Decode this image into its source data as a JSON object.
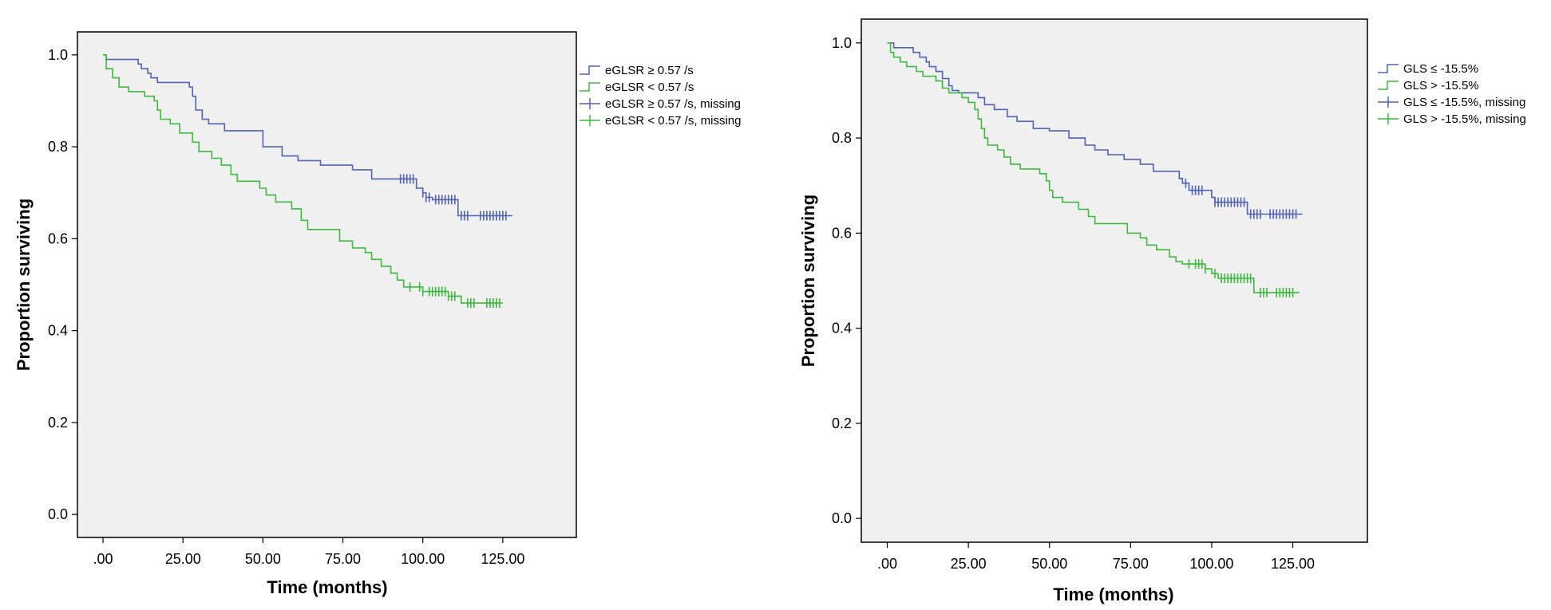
{
  "chart_data": [
    {
      "type": "line",
      "subtype": "kaplan-meier",
      "title": "",
      "xlabel": "Time (months)",
      "ylabel": "Proportion surviving",
      "xlim": [
        -8,
        148
      ],
      "ylim": [
        -0.05,
        1.05
      ],
      "xticks": [
        0,
        25,
        50,
        75,
        100,
        125
      ],
      "xtick_labels": [
        ".00",
        "25.00",
        "50.00",
        "75.00",
        "100.00",
        "125.00"
      ],
      "yticks": [
        0.0,
        0.2,
        0.4,
        0.6,
        0.8,
        1.0
      ],
      "ytick_labels": [
        "0.0",
        "0.2",
        "0.4",
        "0.6",
        "0.8",
        "1.0"
      ],
      "grid": false,
      "legend_position": "right",
      "colors": {
        "group1": "#4f63b0",
        "group2": "#3fb83f",
        "background": "#f0f0f0"
      },
      "legend": [
        "eGLSR ≥ 0.57 /s",
        "eGLSR < 0.57 /s",
        "eGLSR ≥ 0.57 /s, missing",
        "eGLSR < 0.57 /s, missing"
      ],
      "series": [
        {
          "name": "eGLSR ≥ 0.57 /s",
          "color": "#4f63b0",
          "steps": [
            [
              0,
              1.0
            ],
            [
              1,
              0.99
            ],
            [
              11,
              0.98
            ],
            [
              12,
              0.97
            ],
            [
              14,
              0.96
            ],
            [
              15,
              0.95
            ],
            [
              17,
              0.94
            ],
            [
              27,
              0.93
            ],
            [
              28,
              0.91
            ],
            [
              29,
              0.88
            ],
            [
              31,
              0.86
            ],
            [
              33,
              0.85
            ],
            [
              38,
              0.835
            ],
            [
              50,
              0.8
            ],
            [
              56,
              0.78
            ],
            [
              61,
              0.77
            ],
            [
              68,
              0.76
            ],
            [
              78,
              0.75
            ],
            [
              84,
              0.73
            ],
            [
              98,
              0.71
            ],
            [
              100,
              0.7
            ],
            [
              101,
              0.69
            ],
            [
              103,
              0.685
            ],
            [
              111,
              0.65
            ],
            [
              128,
              0.65
            ]
          ],
          "censored": [
            93,
            94,
            95,
            96,
            97,
            100,
            101,
            102,
            104,
            105,
            106,
            107,
            108,
            109,
            110,
            112,
            113,
            114,
            118,
            119,
            120,
            121,
            122,
            123,
            124,
            125,
            126
          ]
        },
        {
          "name": "eGLSR < 0.57 /s",
          "color": "#3fb83f",
          "steps": [
            [
              0,
              1.0
            ],
            [
              1,
              0.97
            ],
            [
              3,
              0.95
            ],
            [
              5,
              0.93
            ],
            [
              8,
              0.92
            ],
            [
              13,
              0.91
            ],
            [
              16,
              0.9
            ],
            [
              17,
              0.88
            ],
            [
              18,
              0.86
            ],
            [
              21,
              0.85
            ],
            [
              24,
              0.83
            ],
            [
              28,
              0.81
            ],
            [
              30,
              0.79
            ],
            [
              34,
              0.775
            ],
            [
              37,
              0.76
            ],
            [
              40,
              0.74
            ],
            [
              42,
              0.725
            ],
            [
              49,
              0.71
            ],
            [
              51,
              0.695
            ],
            [
              54,
              0.68
            ],
            [
              59,
              0.665
            ],
            [
              62,
              0.64
            ],
            [
              64,
              0.62
            ],
            [
              74,
              0.595
            ],
            [
              78,
              0.58
            ],
            [
              82,
              0.57
            ],
            [
              84,
              0.555
            ],
            [
              87,
              0.54
            ],
            [
              90,
              0.525
            ],
            [
              92,
              0.51
            ],
            [
              94,
              0.495
            ],
            [
              100,
              0.485
            ],
            [
              108,
              0.475
            ],
            [
              112,
              0.46
            ],
            [
              125,
              0.46
            ]
          ],
          "censored": [
            96,
            99,
            100,
            102,
            103,
            104,
            105,
            106,
            107,
            108,
            109,
            110,
            114,
            115,
            116,
            120,
            121,
            122,
            123,
            124
          ]
        }
      ]
    },
    {
      "type": "line",
      "subtype": "kaplan-meier",
      "title": "",
      "xlabel": "Time (months)",
      "ylabel": "Proportion surviving",
      "xlim": [
        -8,
        148
      ],
      "ylim": [
        -0.05,
        1.05
      ],
      "xticks": [
        0,
        25,
        50,
        75,
        100,
        125
      ],
      "xtick_labels": [
        ".00",
        "25.00",
        "50.00",
        "75.00",
        "100.00",
        "125.00"
      ],
      "yticks": [
        0.0,
        0.2,
        0.4,
        0.6,
        0.8,
        1.0
      ],
      "ytick_labels": [
        "0.0",
        "0.2",
        "0.4",
        "0.6",
        "0.8",
        "1.0"
      ],
      "grid": false,
      "legend_position": "right",
      "colors": {
        "group1": "#4f63b0",
        "group2": "#3fb83f",
        "background": "#f0f0f0"
      },
      "legend": [
        "GLS ≤ -15.5%",
        "GLS > -15.5%",
        "GLS ≤ -15.5%, missing",
        "GLS > -15.5%, missing"
      ],
      "series": [
        {
          "name": "GLS ≤ -15.5%",
          "color": "#4f63b0",
          "steps": [
            [
              0,
              1.0
            ],
            [
              2,
              0.99
            ],
            [
              8,
              0.98
            ],
            [
              10,
              0.97
            ],
            [
              12,
              0.96
            ],
            [
              13,
              0.95
            ],
            [
              15,
              0.94
            ],
            [
              17,
              0.925
            ],
            [
              19,
              0.91
            ],
            [
              20,
              0.9
            ],
            [
              22,
              0.895
            ],
            [
              28,
              0.885
            ],
            [
              30,
              0.87
            ],
            [
              33,
              0.86
            ],
            [
              37,
              0.845
            ],
            [
              40,
              0.835
            ],
            [
              45,
              0.82
            ],
            [
              50,
              0.815
            ],
            [
              56,
              0.8
            ],
            [
              61,
              0.785
            ],
            [
              64,
              0.775
            ],
            [
              68,
              0.765
            ],
            [
              73,
              0.755
            ],
            [
              78,
              0.745
            ],
            [
              82,
              0.73
            ],
            [
              90,
              0.715
            ],
            [
              91,
              0.705
            ],
            [
              93,
              0.69
            ],
            [
              100,
              0.675
            ],
            [
              101,
              0.665
            ],
            [
              111,
              0.64
            ],
            [
              128,
              0.64
            ]
          ],
          "censored": [
            92,
            94,
            95,
            96,
            97,
            101,
            102,
            103,
            104,
            105,
            106,
            107,
            108,
            109,
            110,
            112,
            113,
            114,
            115,
            118,
            119,
            120,
            121,
            122,
            123,
            124,
            125,
            126
          ]
        },
        {
          "name": "GLS > -15.5%",
          "color": "#3fb83f",
          "steps": [
            [
              0,
              1.0
            ],
            [
              1,
              0.98
            ],
            [
              2,
              0.97
            ],
            [
              4,
              0.96
            ],
            [
              6,
              0.95
            ],
            [
              9,
              0.94
            ],
            [
              11,
              0.93
            ],
            [
              15,
              0.92
            ],
            [
              17,
              0.905
            ],
            [
              19,
              0.895
            ],
            [
              23,
              0.885
            ],
            [
              25,
              0.875
            ],
            [
              27,
              0.86
            ],
            [
              28,
              0.84
            ],
            [
              29,
              0.82
            ],
            [
              30,
              0.8
            ],
            [
              31,
              0.785
            ],
            [
              34,
              0.775
            ],
            [
              36,
              0.76
            ],
            [
              38,
              0.745
            ],
            [
              41,
              0.735
            ],
            [
              47,
              0.725
            ],
            [
              49,
              0.71
            ],
            [
              50,
              0.69
            ],
            [
              51,
              0.675
            ],
            [
              54,
              0.665
            ],
            [
              59,
              0.65
            ],
            [
              62,
              0.635
            ],
            [
              64,
              0.62
            ],
            [
              74,
              0.6
            ],
            [
              78,
              0.59
            ],
            [
              80,
              0.575
            ],
            [
              83,
              0.565
            ],
            [
              87,
              0.55
            ],
            [
              89,
              0.54
            ],
            [
              91,
              0.535
            ],
            [
              98,
              0.525
            ],
            [
              100,
              0.515
            ],
            [
              102,
              0.505
            ],
            [
              113,
              0.475
            ],
            [
              127,
              0.475
            ]
          ],
          "censored": [
            93,
            95,
            96,
            97,
            98,
            101,
            103,
            104,
            105,
            106,
            107,
            108,
            109,
            110,
            111,
            112,
            115,
            116,
            117,
            120,
            121,
            122,
            123,
            124,
            125
          ]
        }
      ]
    }
  ]
}
